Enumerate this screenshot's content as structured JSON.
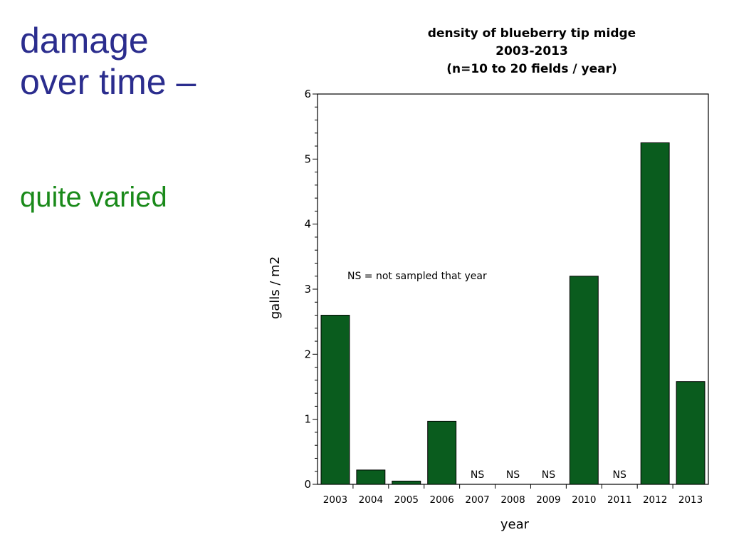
{
  "slide": {
    "title_lines": [
      "damage",
      "over time –"
    ],
    "subtitle": "quite varied",
    "title_color": "#2b2d8e",
    "subtitle_color": "#1a8a1a"
  },
  "chart_data": {
    "type": "bar",
    "title_lines": [
      "density of blueberry tip midge",
      "2003-2013",
      "(n=10 to 20 fields / year)"
    ],
    "xlabel": "year",
    "ylabel": "galls / m2",
    "ylim": [
      0,
      6
    ],
    "yticks": [
      0,
      1,
      2,
      3,
      4,
      5,
      6
    ],
    "categories": [
      "2003",
      "2004",
      "2005",
      "2006",
      "2007",
      "2008",
      "2009",
      "2010",
      "2011",
      "2012",
      "2013"
    ],
    "values": [
      2.6,
      0.22,
      0.05,
      0.97,
      null,
      null,
      null,
      3.2,
      null,
      5.25,
      1.58
    ],
    "not_sampled_label": "NS",
    "annotation": "NS = not sampled that year",
    "bar_color": "#0a5c1e",
    "grid": false,
    "legend": "none"
  }
}
